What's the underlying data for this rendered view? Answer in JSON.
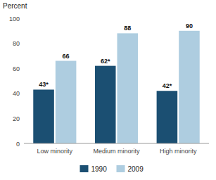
{
  "chart_data": {
    "type": "bar",
    "y_label": "Percent",
    "categories": [
      "Low minority",
      "Medium minority",
      "High minority"
    ],
    "series": [
      {
        "name": "1990",
        "color": "#1b4f72",
        "values": [
          43,
          62,
          42
        ],
        "value_labels": [
          "43*",
          "62*",
          "42*"
        ]
      },
      {
        "name": "2009",
        "color": "#aecde0",
        "values": [
          66,
          88,
          90
        ]
      }
    ],
    "ylim": [
      0,
      100
    ],
    "yticks": [
      0,
      20,
      40,
      60,
      80,
      100
    ],
    "grid": false,
    "legend": "bottom",
    "data_labels": true
  }
}
